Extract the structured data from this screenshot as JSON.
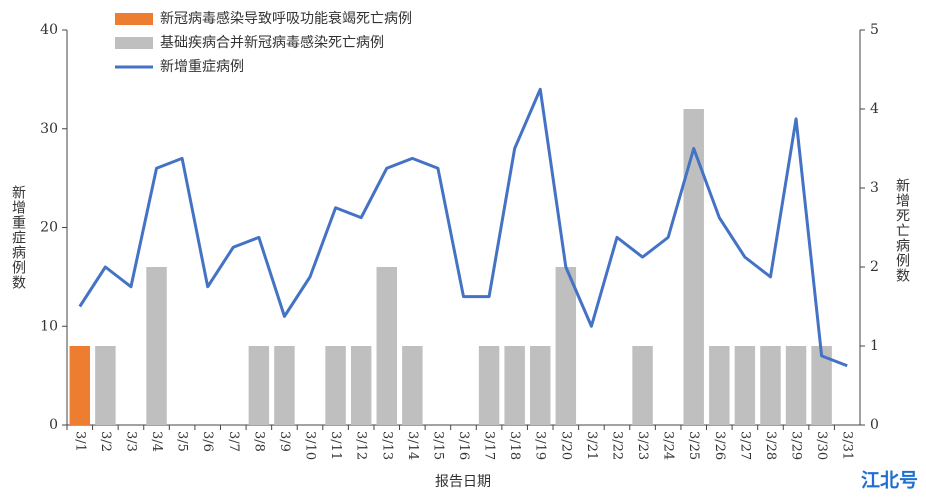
{
  "chart_data": {
    "type": "combo",
    "categories": [
      "3/1",
      "3/2",
      "3/3",
      "3/4",
      "3/5",
      "3/6",
      "3/7",
      "3/8",
      "3/9",
      "3/10",
      "3/11",
      "3/12",
      "3/13",
      "3/14",
      "3/15",
      "3/16",
      "3/17",
      "3/18",
      "3/19",
      "3/20",
      "3/21",
      "3/22",
      "3/23",
      "3/24",
      "3/25",
      "3/26",
      "3/27",
      "3/28",
      "3/29",
      "3/30",
      "3/31"
    ],
    "series": [
      {
        "name": "新冠病毒感染导致呼吸功能衰竭死亡病例",
        "color": "#ed7d31",
        "type": "bar",
        "axis": "y2",
        "values": [
          1,
          0,
          0,
          0,
          0,
          0,
          0,
          0,
          0,
          0,
          0,
          0,
          0,
          0,
          0,
          0,
          0,
          0,
          0,
          0,
          0,
          0,
          0,
          0,
          0,
          0,
          0,
          0,
          0,
          0,
          0
        ]
      },
      {
        "name": "基础疾病合并新冠病毒感染死亡病例",
        "color": "#bfbfbf",
        "type": "bar",
        "axis": "y2",
        "values": [
          0,
          1,
          0,
          2,
          0,
          0,
          0,
          1,
          1,
          0,
          1,
          1,
          2,
          1,
          0,
          0,
          1,
          1,
          1,
          2,
          0,
          0,
          1,
          0,
          4,
          1,
          1,
          1,
          1,
          1,
          0
        ]
      },
      {
        "name": "新增重症病例",
        "color": "#4472c4",
        "type": "line",
        "values": [
          12,
          16,
          14,
          26,
          27,
          14,
          18,
          19,
          11,
          15,
          22,
          21,
          26,
          27,
          26,
          13,
          13,
          28,
          34,
          16,
          10,
          19,
          17,
          19,
          28,
          21,
          17,
          15,
          31,
          7,
          6
        ]
      }
    ],
    "ylabel": "新增重症病例数",
    "y2label": "新增死亡病例数",
    "xlabel": "报告日期",
    "ylim": [
      0,
      40
    ],
    "yticks": [
      0,
      10,
      20,
      30,
      40
    ],
    "y2lim": [
      0,
      5
    ],
    "y2ticks": [
      0,
      1,
      2,
      3,
      4,
      5
    ],
    "grid": false,
    "watermark": "江北号"
  }
}
